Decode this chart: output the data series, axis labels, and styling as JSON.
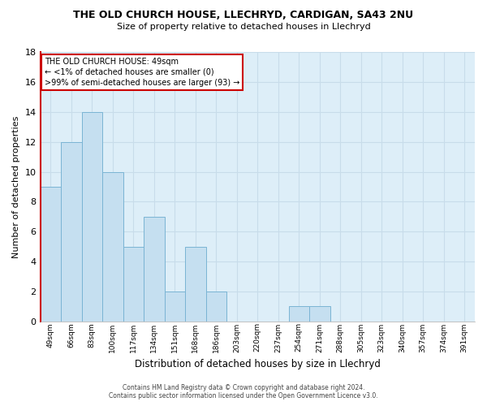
{
  "title1": "THE OLD CHURCH HOUSE, LLECHRYD, CARDIGAN, SA43 2NU",
  "title2": "Size of property relative to detached houses in Llechryd",
  "xlabel": "Distribution of detached houses by size in Llechryd",
  "ylabel": "Number of detached properties",
  "bar_color": "#c5dff0",
  "bar_edge_color": "#7ab4d4",
  "categories": [
    "49sqm",
    "66sqm",
    "83sqm",
    "100sqm",
    "117sqm",
    "134sqm",
    "151sqm",
    "168sqm",
    "186sqm",
    "203sqm",
    "220sqm",
    "237sqm",
    "254sqm",
    "271sqm",
    "288sqm",
    "305sqm",
    "323sqm",
    "340sqm",
    "357sqm",
    "374sqm",
    "391sqm"
  ],
  "values": [
    9,
    12,
    14,
    10,
    5,
    7,
    2,
    5,
    2,
    0,
    0,
    0,
    1,
    1,
    0,
    0,
    0,
    0,
    0,
    0,
    0
  ],
  "ylim": [
    0,
    18
  ],
  "yticks": [
    0,
    2,
    4,
    6,
    8,
    10,
    12,
    14,
    16,
    18
  ],
  "annotation_title": "THE OLD CHURCH HOUSE: 49sqm",
  "annotation_line1": "← <1% of detached houses are smaller (0)",
  "annotation_line2": ">99% of semi-detached houses are larger (93) →",
  "annotation_box_facecolor": "#ffffff",
  "annotation_border_color": "#cc0000",
  "footer1": "Contains HM Land Registry data © Crown copyright and database right 2024.",
  "footer2": "Contains public sector information licensed under the Open Government Licence v3.0.",
  "grid_color": "#c8dcea",
  "background_color": "#ddeef8"
}
